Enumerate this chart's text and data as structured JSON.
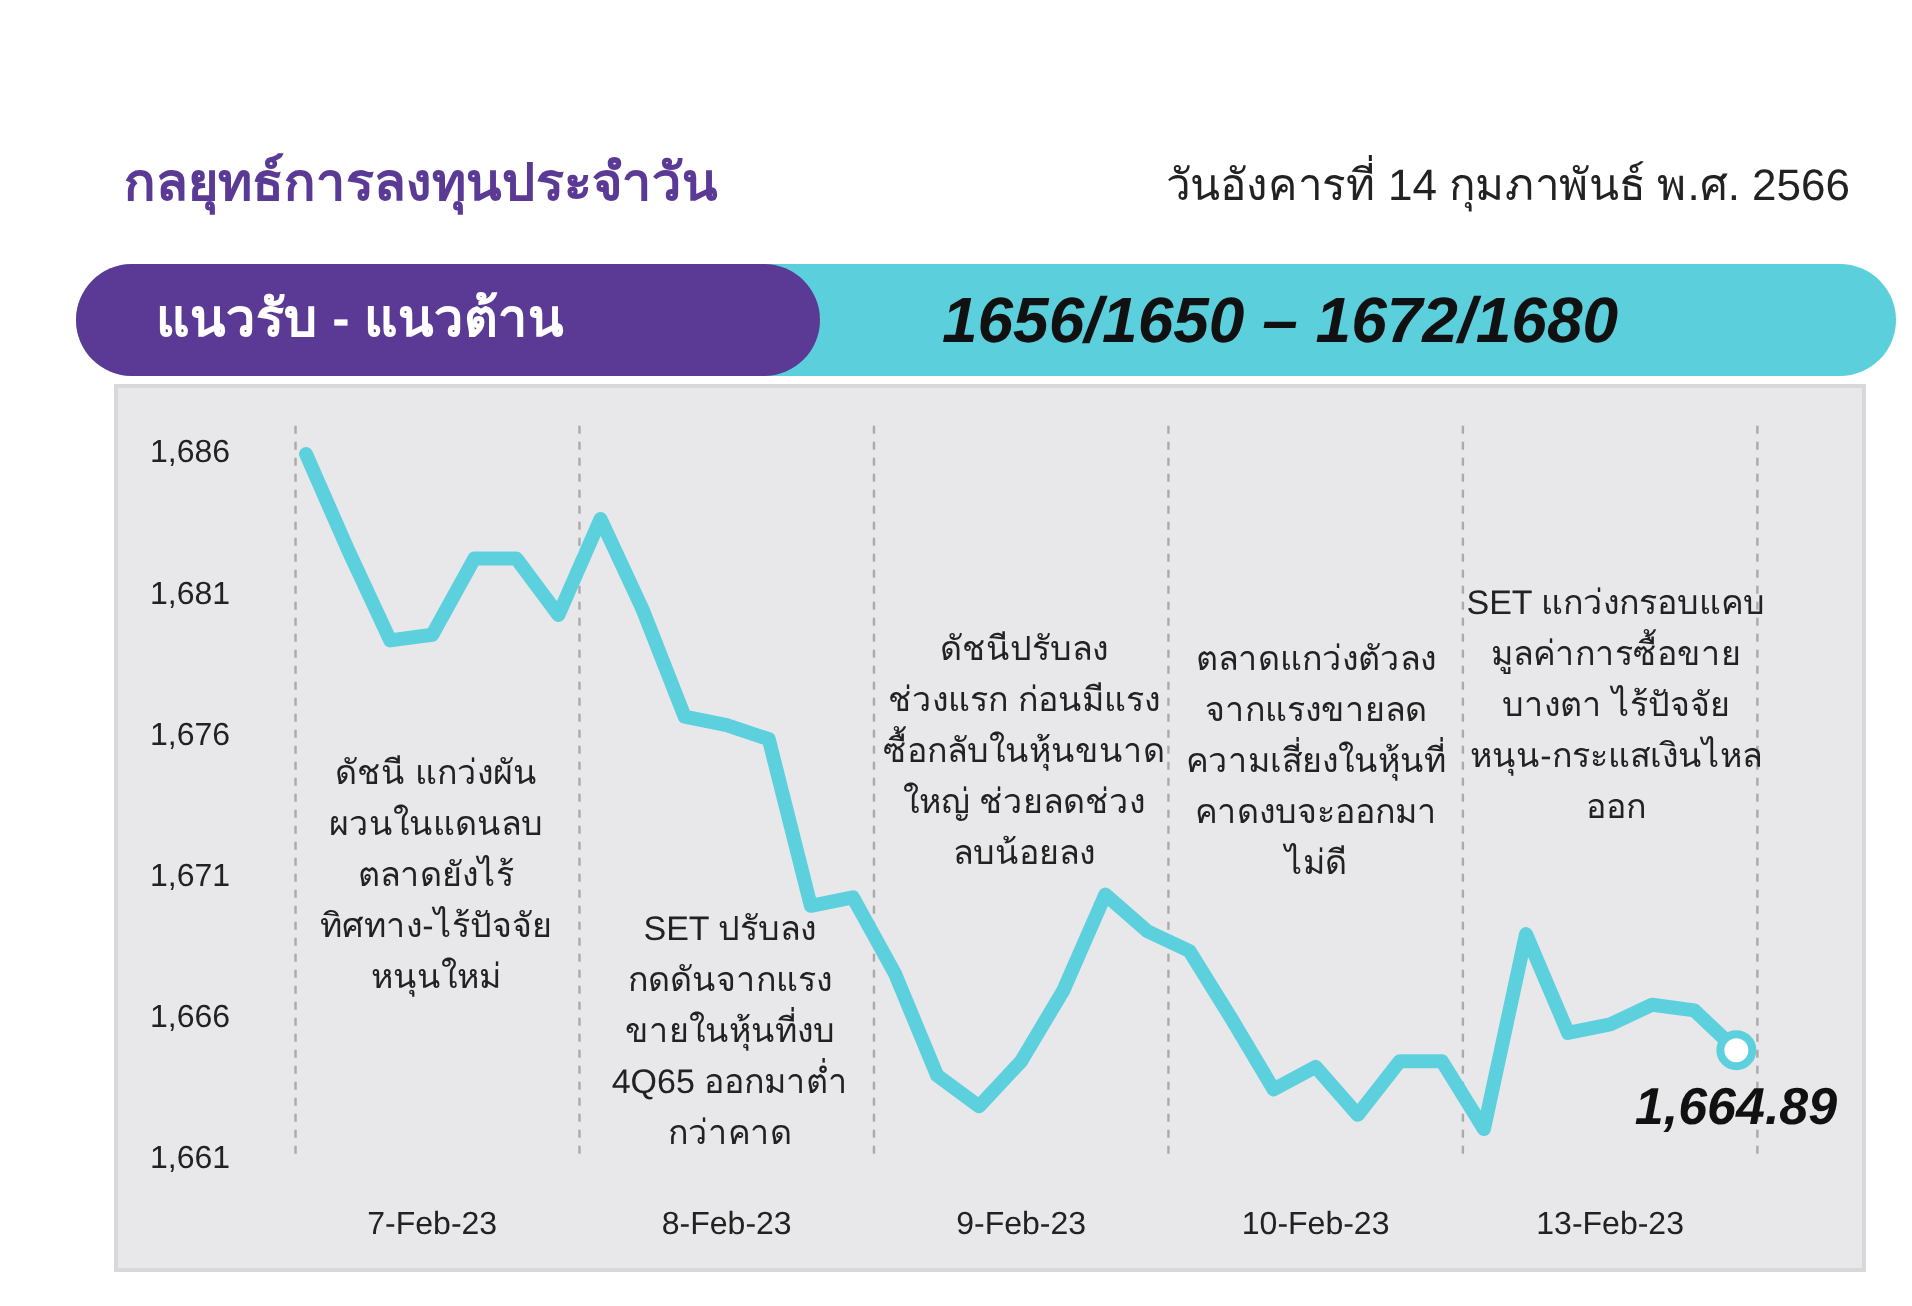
{
  "chart_data": {
    "type": "line",
    "title": "กลยุทธ์การลงทุนประจำวัน",
    "subtitle": "วันอังคารที่ 14 กุมภาพันธ์ พ.ศ. 2566",
    "categories": [
      null,
      null,
      null,
      "7-Feb-23",
      null,
      null,
      null,
      null,
      null,
      null,
      "8-Feb-23",
      null,
      null,
      null,
      null,
      null,
      null,
      "9-Feb-23",
      null,
      null,
      null,
      null,
      null,
      null,
      "10-Feb-23",
      null,
      null,
      null,
      null,
      null,
      null,
      "13-Feb-23",
      null,
      null,
      null
    ],
    "series": [
      {
        "color": "#5dd0de",
        "values": [
          1686.0,
          1682.6,
          1679.4,
          1679.6,
          1682.3,
          1682.3,
          1680.3,
          1683.7,
          1680.5,
          1676.7,
          1676.4,
          1675.9,
          1670.0,
          1670.3,
          1667.6,
          1664.0,
          1662.9,
          1664.5,
          1667.0,
          1670.4,
          1669.1,
          1668.4,
          1666.0,
          1663.5,
          1664.3,
          1662.6,
          1664.5,
          1664.5,
          1662.1,
          1669.0,
          1665.5,
          1665.8,
          1666.5,
          1666.3,
          1664.89
        ]
      },
      {
        "type": "scatter",
        "color": "#ffffff",
        "values": [
          null,
          null,
          null,
          null,
          null,
          null,
          null,
          null,
          null,
          null,
          null,
          null,
          null,
          null,
          null,
          null,
          null,
          null,
          null,
          null,
          null,
          null,
          null,
          null,
          null,
          null,
          null,
          null,
          null,
          null,
          null,
          null,
          null,
          null,
          1664.89
        ]
      }
    ],
    "ylim": [
      1661,
      1687
    ],
    "yticks": [
      {
        "value": 1661,
        "label": "1,661"
      },
      {
        "value": 1666,
        "label": "1,666"
      },
      {
        "value": 1671,
        "label": "1,671"
      },
      {
        "value": 1676,
        "label": "1,676"
      },
      {
        "value": 1681,
        "label": "1,681"
      },
      {
        "value": 1686,
        "label": "1,686"
      }
    ],
    "annotations": [
      "แนวรับ - แนวต้าน",
      "1656/1650 – 1672/1680",
      "ดัชนี แกว่งผัน\nผวนในแดนลบ\nตลาดยังไร้\nทิศทาง-ไร้ปัจจัย\nหนุนใหม่",
      "SET ปรับลง\nกดดันจากแรง\nขายในหุ้นที่งบ\n4Q65 ออกมาต่ำ\nกว่าคาด",
      "ดัชนีปรับลง\nช่วงแรก ก่อนมีแรง\nซื้อกลับในหุ้นขนาด\nใหญ่ ช่วยลดช่วง\nลบน้อยลง",
      "ตลาดแกว่งตัวลง\nจากแรงขายลด\nความเสี่ยงในหุ้นที่\nคาดงบจะออกมา\nไม่ดี",
      "SET แกว่งกรอบแคบ\nมูลค่าการซื้อขาย\nบางตา ไร้ปัจจัย\nหนุน-กระแสเงินไหล\nออก",
      "1,664.89"
    ],
    "grid": false
  }
}
